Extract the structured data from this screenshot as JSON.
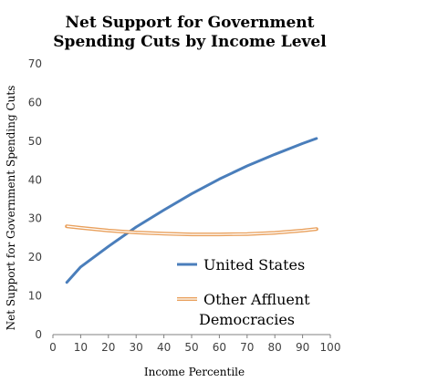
{
  "chart_data": {
    "type": "line",
    "title": [
      "Net Support for Government",
      "Spending Cuts by Income Level"
    ],
    "xlabel": "Income Percentile",
    "ylabel": "Net Support for Government Spending Cuts",
    "xlim": [
      0,
      100
    ],
    "ylim": [
      0,
      70
    ],
    "xticks": [
      0,
      10,
      20,
      30,
      40,
      50,
      60,
      70,
      80,
      90,
      100
    ],
    "yticks": [
      0,
      10,
      20,
      30,
      40,
      50,
      60,
      70
    ],
    "grid": false,
    "legend_placement": "bottom-right",
    "series": [
      {
        "name": "United States",
        "color": "#4a7ebb",
        "style": "solid",
        "x": [
          5,
          10,
          20,
          30,
          40,
          50,
          60,
          70,
          80,
          90,
          95
        ],
        "y": [
          13.5,
          17.5,
          22.8,
          27.8,
          32.2,
          36.4,
          40.2,
          43.6,
          46.6,
          49.4,
          50.7
        ]
      },
      {
        "name": "Other Affluent Democracies",
        "color": "#e9a05c",
        "style": "double",
        "x": [
          5,
          10,
          20,
          30,
          40,
          50,
          60,
          70,
          80,
          90,
          95
        ],
        "y": [
          28.0,
          27.6,
          26.9,
          26.4,
          26.1,
          25.9,
          25.9,
          26.0,
          26.3,
          26.9,
          27.3
        ]
      }
    ],
    "legend": {
      "entries": [
        "United States",
        "Other Affluent",
        "Democracies"
      ]
    }
  }
}
